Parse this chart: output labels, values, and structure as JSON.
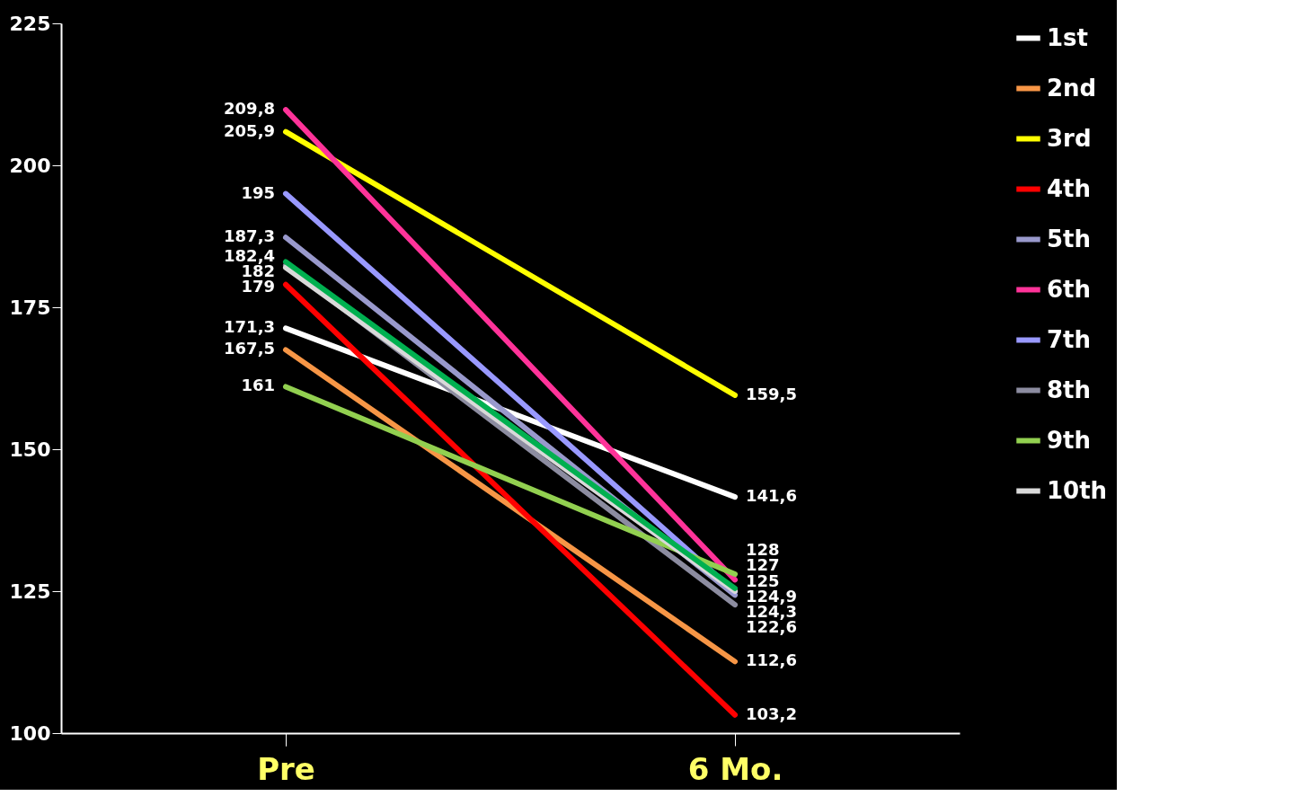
{
  "chart_data": {
    "type": "line",
    "categories": [
      "Pre",
      "6 Mo."
    ],
    "ylim": [
      100,
      225
    ],
    "yticks": [
      100,
      125,
      150,
      175,
      200,
      225
    ],
    "grid": false,
    "legend": "right",
    "marker": "none",
    "line_style": "solid",
    "series": [
      {
        "name": "1st",
        "color": "#ffffff",
        "values": [
          171.3,
          141.6
        ],
        "value_labels": [
          "171,3",
          "141,6"
        ]
      },
      {
        "name": "2nd",
        "color": "#f79646",
        "values": [
          167.5,
          112.6
        ],
        "value_labels": [
          "167,5",
          "112,6"
        ]
      },
      {
        "name": "3rd",
        "color": "#ffff00",
        "values": [
          205.9,
          159.5
        ],
        "value_labels": [
          "205,9",
          "159,5"
        ]
      },
      {
        "name": "4th",
        "color": "#ff0000",
        "values": [
          179,
          103.2
        ],
        "value_labels": [
          "179",
          "103,2"
        ]
      },
      {
        "name": "5th",
        "color": "#9999cc",
        "values": [
          187.3,
          124.3
        ],
        "value_labels": [
          "187,3",
          "124,3"
        ]
      },
      {
        "name": "6th",
        "color": "#ff3399",
        "values": [
          209.8,
          127
        ],
        "value_labels": [
          "209,8",
          "127"
        ]
      },
      {
        "name": "7th",
        "color": "#9999ff",
        "values": [
          195,
          124.9
        ],
        "value_labels": [
          "195",
          "124,9"
        ]
      },
      {
        "name": "8th",
        "color": "#8c8ca0",
        "values": [
          182.4,
          122.6
        ],
        "value_labels": [
          "182,4",
          "122,6"
        ]
      },
      {
        "name": "9th",
        "color": "#92d050",
        "values": [
          161,
          128
        ],
        "value_labels": [
          "161",
          "128"
        ]
      },
      {
        "name": "10th",
        "color": "#d9d9d9",
        "values": [
          182,
          125
        ],
        "value_labels": [
          "182",
          "125"
        ]
      },
      {
        "color": "#00b050",
        "values": [
          183,
          125.5
        ]
      }
    ]
  }
}
